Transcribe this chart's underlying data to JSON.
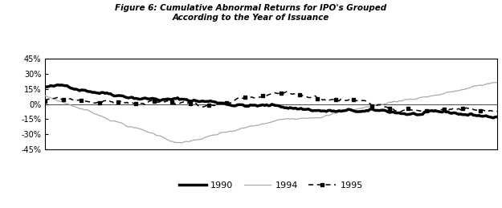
{
  "title_line1": "Figure 6: Cumulative Abnormal Returns for IPO's Grouped",
  "title_line2": "According to the Year of Issuance",
  "ylim": [
    -0.45,
    0.45
  ],
  "yticks": [
    -0.45,
    -0.3,
    -0.15,
    0.0,
    0.15,
    0.3,
    0.45
  ],
  "ytick_labels": [
    "-45%",
    "-30%",
    "-15%",
    "0%",
    "15%",
    "30%",
    "45%"
  ],
  "n_points": 250,
  "bg_color": "#ffffff",
  "line1990_color": "#000000",
  "line1994_color": "#aaaaaa",
  "line1995_color": "#000000"
}
